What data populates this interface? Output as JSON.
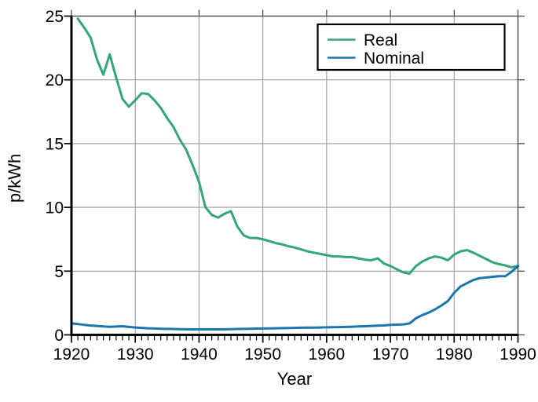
{
  "figure": {
    "background": "#ffffff",
    "grid_color": "#9b9b9b",
    "spine_color": "#000000",
    "box_color": "#3c3c3c"
  },
  "chart_data": {
    "type": "line",
    "title": "",
    "xlabel": "Year",
    "ylabel": "p/kWh",
    "xlim": [
      1920,
      1990
    ],
    "ylim": [
      0,
      25
    ],
    "xticks": [
      1920,
      1930,
      1940,
      1950,
      1960,
      1970,
      1980,
      1990
    ],
    "yticks": [
      0,
      5,
      10,
      15,
      20,
      25
    ],
    "minor_xtick_step": 1,
    "grid": true,
    "legend_position": "top-right",
    "series": [
      {
        "name": "Real",
        "color": "#32a674",
        "x": [
          1921,
          1922,
          1923,
          1924,
          1925,
          1926,
          1927,
          1928,
          1929,
          1930,
          1931,
          1932,
          1933,
          1934,
          1935,
          1936,
          1937,
          1938,
          1939,
          1940,
          1941,
          1942,
          1943,
          1944,
          1945,
          1946,
          1947,
          1948,
          1949,
          1950,
          1951,
          1952,
          1953,
          1954,
          1955,
          1956,
          1957,
          1958,
          1959,
          1960,
          1961,
          1962,
          1963,
          1964,
          1965,
          1966,
          1967,
          1968,
          1969,
          1970,
          1971,
          1972,
          1973,
          1974,
          1975,
          1976,
          1977,
          1978,
          1979,
          1980,
          1981,
          1982,
          1983,
          1984,
          1985,
          1986,
          1987,
          1988,
          1989,
          1990
        ],
        "values": [
          24.8,
          24.1,
          23.3,
          21.6,
          20.4,
          22.0,
          20.2,
          18.5,
          17.9,
          18.4,
          18.95,
          18.9,
          18.4,
          17.8,
          17.0,
          16.3,
          15.3,
          14.5,
          13.3,
          12.0,
          10.0,
          9.4,
          9.2,
          9.5,
          9.7,
          8.5,
          7.8,
          7.6,
          7.6,
          7.5,
          7.35,
          7.2,
          7.1,
          6.95,
          6.85,
          6.7,
          6.55,
          6.45,
          6.35,
          6.25,
          6.15,
          6.15,
          6.1,
          6.1,
          6.0,
          5.9,
          5.85,
          6.0,
          5.6,
          5.4,
          5.15,
          4.9,
          4.8,
          5.4,
          5.75,
          6.0,
          6.15,
          6.05,
          5.85,
          6.3,
          6.55,
          6.65,
          6.45,
          6.2,
          5.95,
          5.7,
          5.55,
          5.45,
          5.3,
          5.4
        ]
      },
      {
        "name": "Nominal",
        "color": "#1b76ae",
        "x": [
          1920,
          1921,
          1922,
          1923,
          1924,
          1925,
          1926,
          1927,
          1928,
          1929,
          1930,
          1931,
          1932,
          1933,
          1934,
          1935,
          1936,
          1937,
          1938,
          1939,
          1940,
          1941,
          1942,
          1943,
          1944,
          1945,
          1946,
          1947,
          1948,
          1949,
          1950,
          1951,
          1952,
          1953,
          1954,
          1955,
          1956,
          1957,
          1958,
          1959,
          1960,
          1961,
          1962,
          1963,
          1964,
          1965,
          1966,
          1967,
          1968,
          1969,
          1970,
          1971,
          1972,
          1973,
          1974,
          1975,
          1976,
          1977,
          1978,
          1979,
          1980,
          1981,
          1982,
          1983,
          1984,
          1985,
          1986,
          1987,
          1988,
          1989,
          1990
        ],
        "values": [
          0.9,
          0.85,
          0.78,
          0.73,
          0.7,
          0.66,
          0.63,
          0.65,
          0.68,
          0.62,
          0.58,
          0.55,
          0.52,
          0.5,
          0.48,
          0.47,
          0.46,
          0.45,
          0.44,
          0.43,
          0.43,
          0.43,
          0.43,
          0.43,
          0.44,
          0.45,
          0.46,
          0.47,
          0.48,
          0.49,
          0.5,
          0.51,
          0.52,
          0.53,
          0.54,
          0.55,
          0.56,
          0.57,
          0.57,
          0.58,
          0.59,
          0.6,
          0.61,
          0.62,
          0.64,
          0.66,
          0.68,
          0.7,
          0.72,
          0.74,
          0.78,
          0.8,
          0.82,
          0.9,
          1.3,
          1.55,
          1.75,
          2.0,
          2.3,
          2.65,
          3.3,
          3.8,
          4.05,
          4.3,
          4.45,
          4.5,
          4.55,
          4.6,
          4.6,
          4.95,
          5.4
        ]
      }
    ]
  }
}
